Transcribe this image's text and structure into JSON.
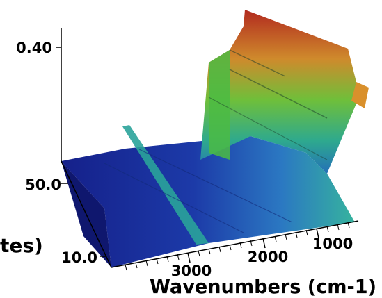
{
  "chart_data": {
    "type": "surface",
    "title": "",
    "z_axis": {
      "ticks": [
        {
          "value": 0.4,
          "label": "0.40"
        }
      ]
    },
    "y_axis": {
      "label_visible_fragment": "tes)",
      "ticks": [
        {
          "value": 50.0,
          "label": "50.0"
        },
        {
          "value": 10.0,
          "label": "10.0"
        }
      ]
    },
    "x_axis": {
      "label": "Wavenumbers (cm-1)",
      "ticks": [
        {
          "value": 3000,
          "label": "3000"
        },
        {
          "value": 2000,
          "label": "2000"
        },
        {
          "value": 1000,
          "label": "1000"
        }
      ],
      "reversed": true
    },
    "colormap": [
      "#141a8c",
      "#1f3fb0",
      "#2a7fc0",
      "#34b4a8",
      "#3fbf4a",
      "#8ecb3a",
      "#d89a2a",
      "#c83220"
    ]
  }
}
